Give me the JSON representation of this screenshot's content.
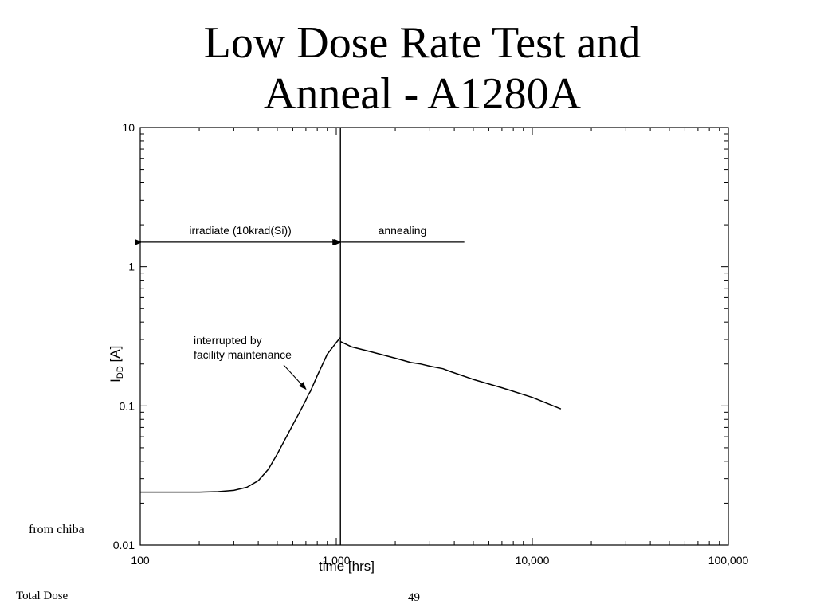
{
  "slide": {
    "title_line1": "Low Dose Rate Test and",
    "title_line2": "Anneal - A1280A",
    "source_note": "from chiba",
    "footer_left": "Total Dose",
    "page_number": "49"
  },
  "chart_data": {
    "type": "line",
    "title": "",
    "xlabel": "time [hrs]",
    "ylabel_main": "I",
    "ylabel_sub": "DD",
    "ylabel_unit": " [A]",
    "xscale": "log",
    "yscale": "log",
    "xlim": [
      100,
      100000
    ],
    "ylim": [
      0.01,
      10
    ],
    "x_ticks": [
      {
        "value": 100,
        "label": "100"
      },
      {
        "value": 1000,
        "label": "1,000"
      },
      {
        "value": 10000,
        "label": "10,000"
      },
      {
        "value": 100000,
        "label": "100,000"
      }
    ],
    "y_ticks": [
      {
        "value": 0.01,
        "label": "0.01"
      },
      {
        "value": 0.1,
        "label": "0.1"
      },
      {
        "value": 1,
        "label": "1"
      },
      {
        "value": 10,
        "label": "10"
      }
    ],
    "grid": false,
    "series": [
      {
        "name": "",
        "x": [
          100,
          150,
          200,
          250,
          300,
          350,
          400,
          450,
          500,
          550,
          600,
          650,
          700,
          720,
          740,
          800,
          900,
          1000,
          1050
        ],
        "y": [
          0.024,
          0.024,
          0.024,
          0.0242,
          0.0247,
          0.026,
          0.029,
          0.035,
          0.045,
          0.058,
          0.073,
          0.09,
          0.11,
          0.12,
          0.128,
          0.165,
          0.235,
          0.285,
          0.31
        ]
      },
      {
        "name": "",
        "x": [
          1050,
          1200,
          1500,
          2000,
          2400,
          2700,
          3000,
          3500,
          3800,
          5000,
          7000,
          10000,
          14000
        ],
        "y": [
          0.29,
          0.265,
          0.245,
          0.22,
          0.205,
          0.2,
          0.193,
          0.185,
          0.177,
          0.155,
          0.135,
          0.115,
          0.095
        ]
      }
    ],
    "annotations": {
      "divider_x": 1050,
      "irradiate_label": "irradiate (10krad(Si))",
      "irradiate_y": 1.5,
      "annealing_label": "annealing",
      "annealing_y": 1.5,
      "annealing_end_x": 4500,
      "maintenance_line1": "interrupted by",
      "maintenance_line2": "facility maintenance",
      "maintenance_arrow_target_x": 720,
      "maintenance_arrow_target_y": 0.125
    }
  }
}
